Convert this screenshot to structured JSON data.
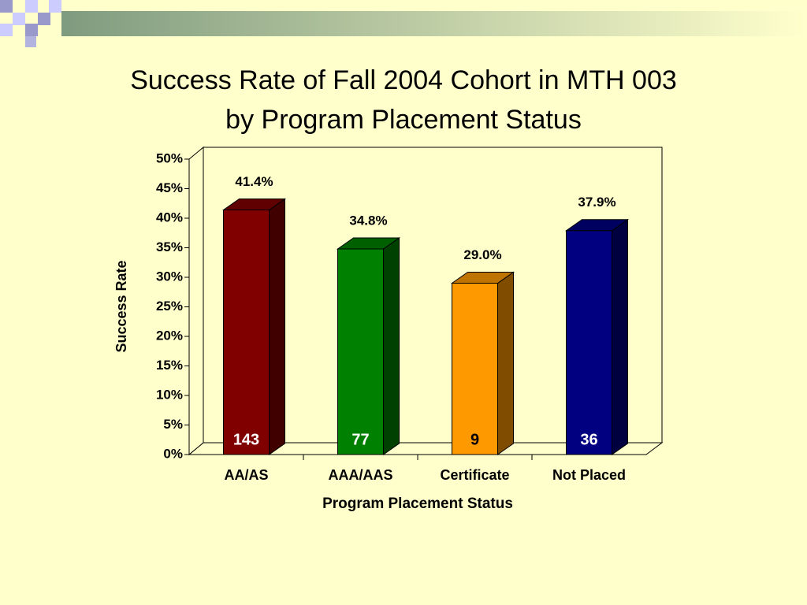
{
  "chart_data": {
    "type": "bar3d",
    "title": [
      "Success Rate of Fall 2004 Cohort in MTH 003",
      "by Program Placement Status"
    ],
    "y_label": "Success Rate",
    "x_label": "Program Placement Status",
    "categories": [
      "AA/AS",
      "AAA/AAS",
      "Certificate",
      "Not Placed"
    ],
    "values": [
      41.4,
      34.8,
      29.0,
      37.9
    ],
    "value_labels": [
      "41.4%",
      "34.8%",
      "29.0%",
      "37.9%"
    ],
    "counts": [
      143,
      77,
      9,
      36
    ],
    "colors": [
      "#800000",
      "#008000",
      "#ff9900",
      "#000080"
    ],
    "count_colors": [
      "#ffffff",
      "#ffffff",
      "#000000",
      "#ffffff"
    ],
    "ylim": [
      0,
      50
    ],
    "yticks": [
      {
        "value": 0,
        "label": "0%"
      },
      {
        "value": 5,
        "label": "5%"
      },
      {
        "value": 10,
        "label": "10%"
      },
      {
        "value": 15,
        "label": "15%"
      },
      {
        "value": 20,
        "label": "20%"
      },
      {
        "value": 25,
        "label": "25%"
      },
      {
        "value": 30,
        "label": "30%"
      },
      {
        "value": 35,
        "label": "35%"
      },
      {
        "value": 40,
        "label": "40%"
      },
      {
        "value": 45,
        "label": "45%"
      },
      {
        "value": 50,
        "label": "50%"
      }
    ]
  }
}
